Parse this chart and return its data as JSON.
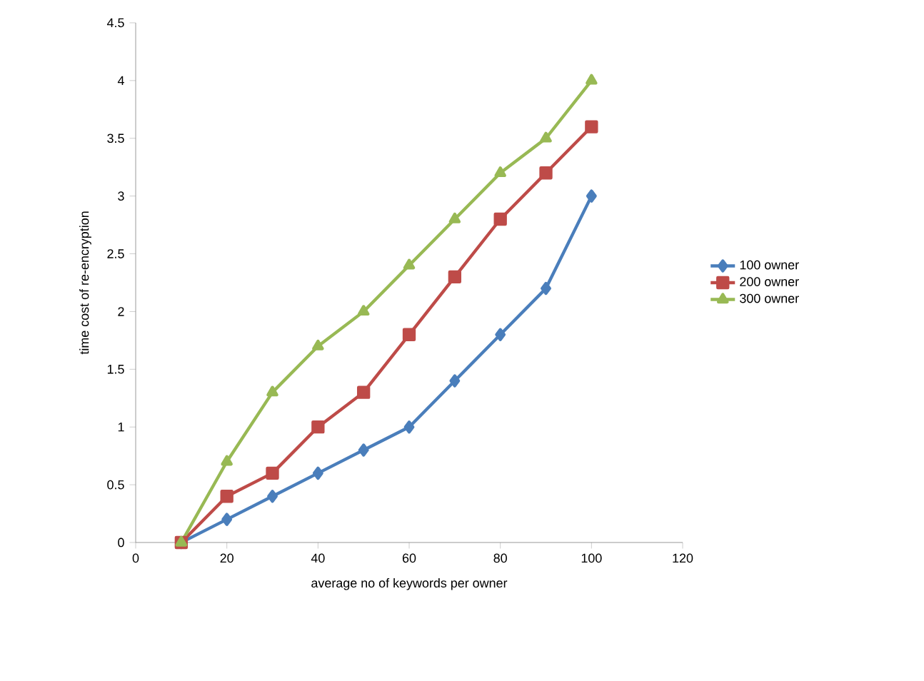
{
  "chart_data": {
    "type": "line",
    "xlabel": "average no of keywords per owner",
    "ylabel": "time cost of re-encryption",
    "x": [
      10,
      20,
      30,
      40,
      50,
      60,
      70,
      80,
      90,
      100
    ],
    "series": [
      {
        "name": "100 owner",
        "color": "#4a7ebb",
        "marker": "diamond",
        "values": [
          0,
          0.2,
          0.4,
          0.6,
          0.8,
          1.0,
          1.4,
          1.8,
          2.2,
          3.0
        ]
      },
      {
        "name": "200 owner",
        "color": "#be4b48",
        "marker": "square",
        "values": [
          0,
          0.4,
          0.6,
          1.0,
          1.3,
          1.8,
          2.3,
          2.8,
          3.2,
          3.6
        ]
      },
      {
        "name": "300 owner",
        "color": "#98b954",
        "marker": "triangle",
        "values": [
          0,
          0.7,
          1.3,
          1.7,
          2.0,
          2.4,
          2.8,
          3.2,
          3.5,
          4.0
        ]
      }
    ],
    "xlim": [
      0,
      120
    ],
    "xticks": [
      0,
      20,
      40,
      60,
      80,
      100,
      120
    ],
    "ylim": [
      0,
      4.5
    ],
    "yticks": [
      0,
      0.5,
      1,
      1.5,
      2,
      2.5,
      3,
      3.5,
      4,
      4.5
    ],
    "grid": false,
    "legend": "right",
    "line_style": "solid"
  }
}
